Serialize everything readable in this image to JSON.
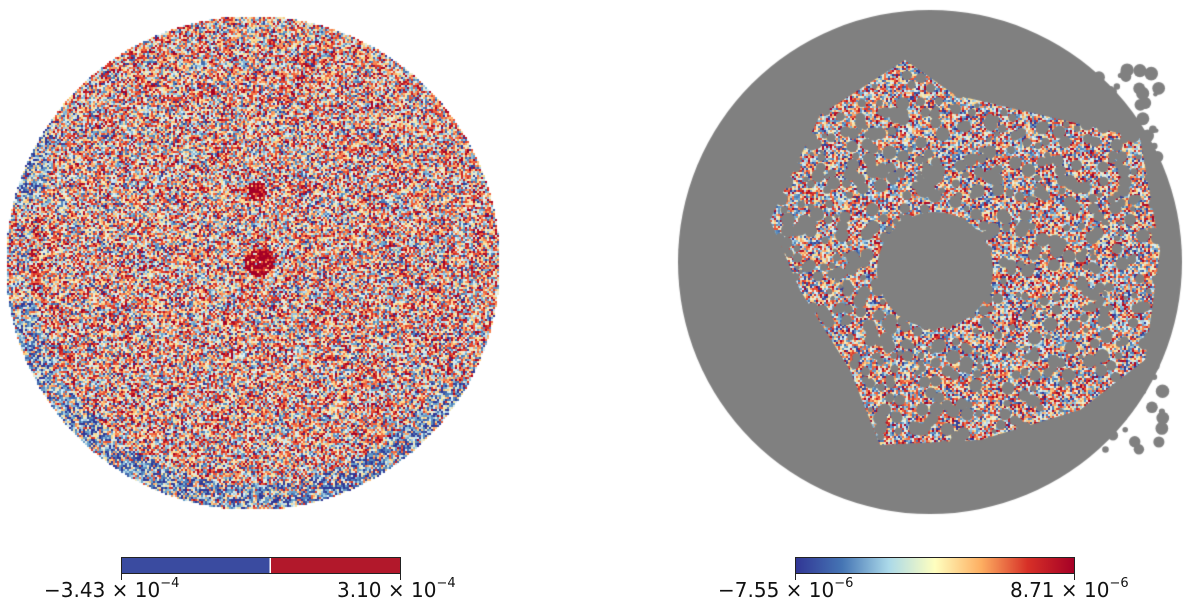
{
  "maps": [
    {
      "name": "left-sky-map",
      "colorbar": {
        "min_label": {
          "mantissa": "−3.43 × 10",
          "exponent": "−4"
        },
        "max_label": {
          "mantissa": "3.10 × 10",
          "exponent": "−4"
        },
        "colors": [
          "#3a4ba0",
          "#b2182b"
        ]
      }
    },
    {
      "name": "right-masked-map",
      "colorbar": {
        "min_label": {
          "mantissa": "−7.55 × 10",
          "exponent": "−6"
        },
        "max_label": {
          "mantissa": "8.71 × 10",
          "exponent": "−6"
        },
        "colors": [
          "#313695",
          "#4575b4",
          "#abd9e9",
          "#ffffbf",
          "#fdae61",
          "#d73027",
          "#a50026"
        ]
      },
      "mask_color": "#808080"
    }
  ]
}
